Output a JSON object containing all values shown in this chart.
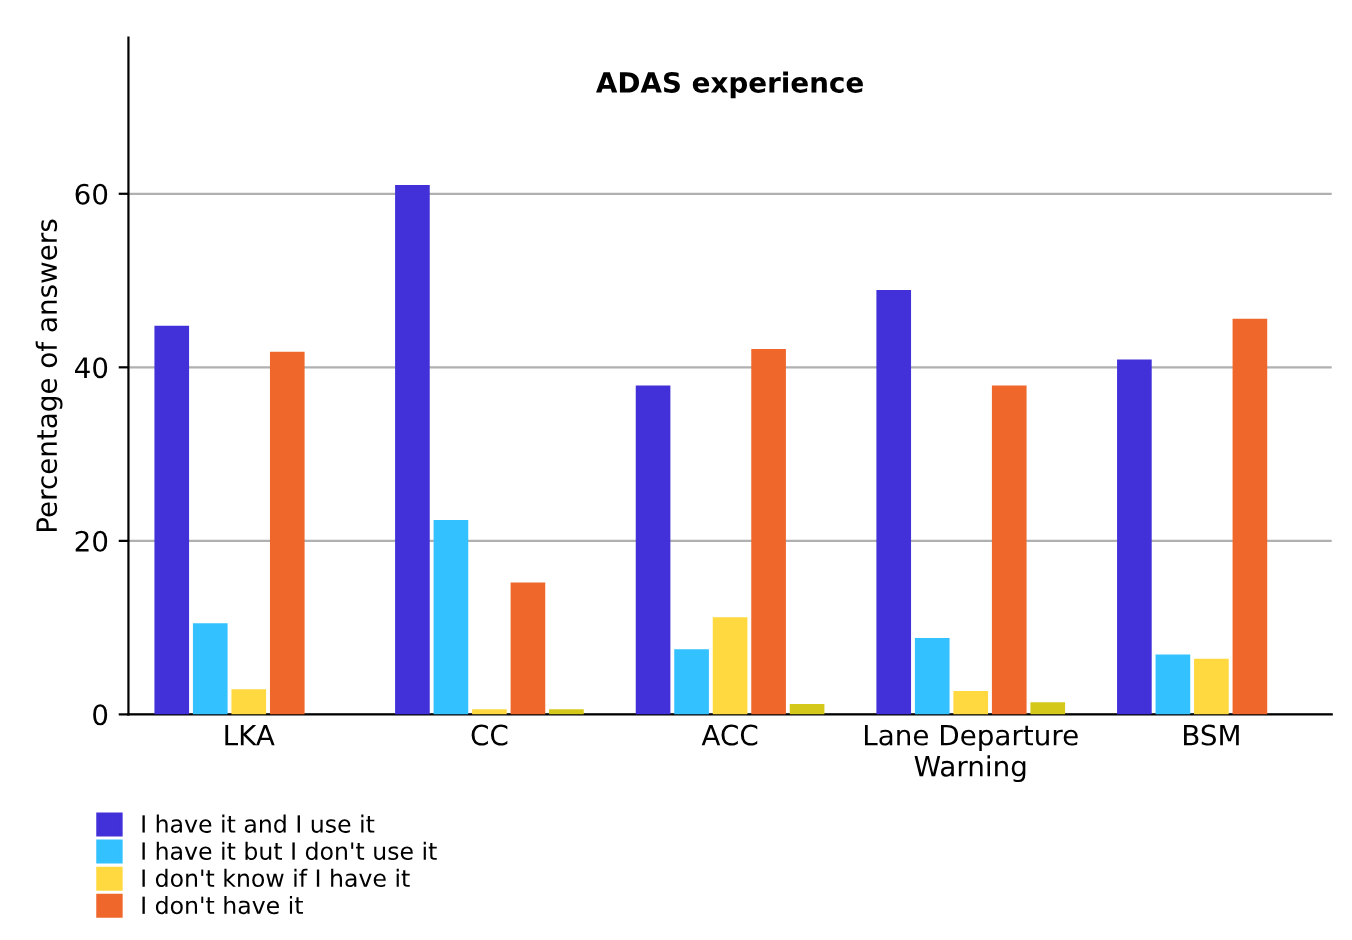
{
  "chart_data": {
    "type": "bar",
    "title": "ADAS experience",
    "ylabel": "Percentage of answers",
    "categories": [
      "LKA",
      "CC",
      "ACC",
      "Lane Departure\nWarning",
      "BSM"
    ],
    "series": [
      {
        "name": "I have it and I use it",
        "color": "#4230d9",
        "values": [
          44.8,
          61,
          37.9,
          48.9,
          40.9
        ]
      },
      {
        "name": "I have it but I don't use it",
        "color": "#33c1ff",
        "values": [
          10.5,
          22.4,
          7.5,
          8.8,
          6.9
        ]
      },
      {
        "name": "I don't know if I have it",
        "color": "#ffd93f",
        "values": [
          2.9,
          0.6,
          11.2,
          2.7,
          6.4
        ]
      },
      {
        "name": "I don't have it",
        "color": "#f0672b",
        "values": [
          41.8,
          15.2,
          42.1,
          37.9,
          45.6
        ]
      },
      {
        "color": "#d4c81a",
        "values": [
          null,
          0.6,
          1.2,
          1.4,
          null
        ]
      }
    ],
    "ylim": [
      0,
      78
    ],
    "yticks": [
      0,
      20,
      40,
      60
    ],
    "grid": "y",
    "legend": "bottom left"
  }
}
